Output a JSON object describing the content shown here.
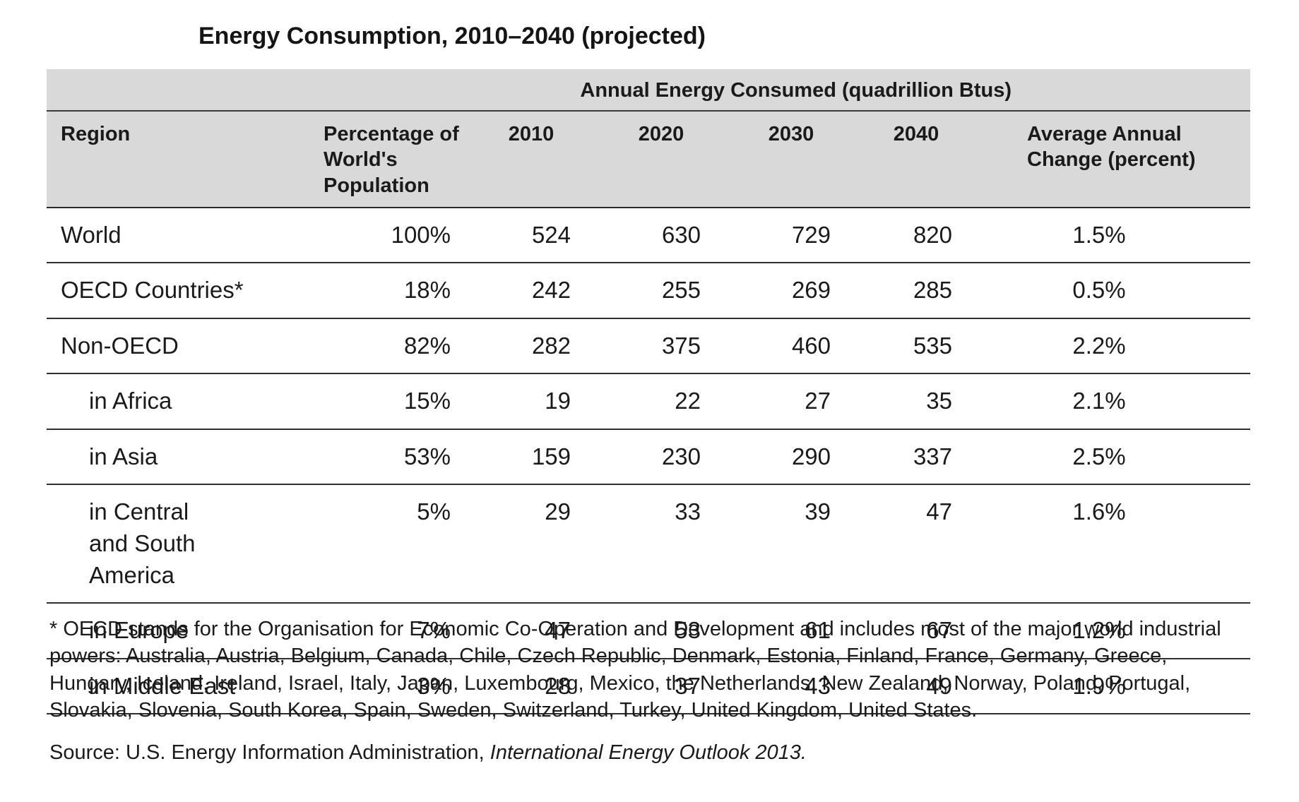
{
  "title": "Energy Consumption, 2010–2040 (projected)",
  "table": {
    "group_header": "Annual Energy Consumed (quadrillion Btus)",
    "columns": {
      "region": "Region",
      "population": "Percentage of World's Population",
      "y2010": "2010",
      "y2020": "2020",
      "y2030": "2030",
      "y2040": "2040",
      "change": "Average Annual Change (percent)"
    },
    "rows": [
      {
        "region": "World",
        "population": "100%",
        "y2010": "524",
        "y2020": "630",
        "y2030": "729",
        "y2040": "820",
        "change": "1.5%"
      },
      {
        "region": "OECD Countries*",
        "population": "18%",
        "y2010": "242",
        "y2020": "255",
        "y2030": "269",
        "y2040": "285",
        "change": "0.5%"
      },
      {
        "region": "Non-OECD",
        "population": "82%",
        "y2010": "282",
        "y2020": "375",
        "y2030": "460",
        "y2040": "535",
        "change": "2.2%"
      },
      {
        "region": "in Africa",
        "population": "15%",
        "y2010": "19",
        "y2020": "22",
        "y2030": "27",
        "y2040": "35",
        "change": "2.1%"
      },
      {
        "region": "in Asia",
        "population": "53%",
        "y2010": "159",
        "y2020": "230",
        "y2030": "290",
        "y2040": "337",
        "change": "2.5%"
      },
      {
        "region": "in Central and South America",
        "population": "5%",
        "y2010": "29",
        "y2020": "33",
        "y2030": "39",
        "y2040": "47",
        "change": "1.6%"
      },
      {
        "region": "in Europe",
        "population": "7%",
        "y2010": "47",
        "y2020": "53",
        "y2030": "61",
        "y2040": "67",
        "change": "1.2%"
      },
      {
        "region": "in Middle East",
        "population": "3%",
        "y2010": "28",
        "y2020": "37",
        "y2030": "43",
        "y2040": "49",
        "change": "1.9%"
      }
    ]
  },
  "footnote": "* OECD stands for the Organisation for Economic Co-Operation and Development and includes most of the major world industrial powers: Australia, Austria, Belgium, Canada, Chile, Czech Republic, Denmark, Estonia, Finland, France, Germany, Greece, Hungary, Iceland, Ireland, Israel, Italy, Japan, Luxembourg, Mexico, the Netherlands, New Zealand, Norway, Poland, Portugal, Slovakia, Slovenia, South Korea, Spain, Sweden, Switzerland, Turkey, United Kingdom, United States.",
  "source": {
    "prefix": "Source: U.S. Energy Information Administration,",
    "publication": "International Energy Outlook 2013."
  }
}
